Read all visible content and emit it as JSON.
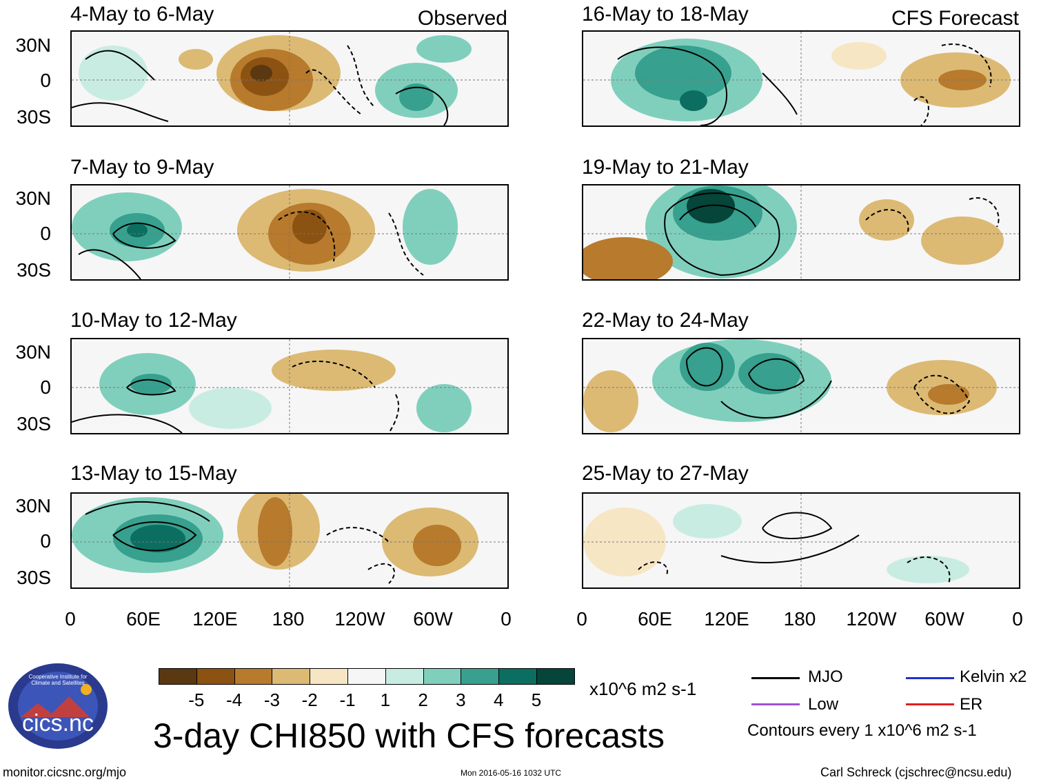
{
  "panels_left": [
    {
      "title": "4-May to 6-May",
      "tag": "Observed"
    },
    {
      "title": "7-May to 9-May",
      "tag": ""
    },
    {
      "title": "10-May to 12-May",
      "tag": ""
    },
    {
      "title": "13-May to 15-May",
      "tag": ""
    }
  ],
  "panels_right": [
    {
      "title": "16-May to 18-May",
      "tag": "CFS Forecast"
    },
    {
      "title": "19-May to 21-May",
      "tag": ""
    },
    {
      "title": "22-May to 24-May",
      "tag": ""
    },
    {
      "title": "25-May to 27-May",
      "tag": ""
    }
  ],
  "lat_labels": [
    "30N",
    "0",
    "30S"
  ],
  "lon_labels": [
    "0",
    "60E",
    "120E",
    "180",
    "120W",
    "60W",
    "0"
  ],
  "colorbar": {
    "colors": [
      "#5a3812",
      "#8c5212",
      "#b87a2c",
      "#dcba74",
      "#f6e6c4",
      "#f6f6f6",
      "#c9ece2",
      "#80cfbd",
      "#37a08e",
      "#0c6e60",
      "#05453a"
    ],
    "labels": [
      "-5",
      "-4",
      "-3",
      "-2",
      "-1",
      "1",
      "2",
      "3",
      "4",
      "5"
    ],
    "units": "x10^6 m2 s-1"
  },
  "legend": {
    "mjo": "MJO",
    "kelvin": "Kelvin x2",
    "low": "Low",
    "er": "ER",
    "contours": "Contours every 1 x10^6 m2 s-1",
    "colors": {
      "mjo": "#000000",
      "kelvin": "#1f2fd0",
      "low": "#a050d8",
      "er": "#e02020"
    }
  },
  "main_title": "3-day CHI850 with CFS forecasts",
  "logo_text": "cics.nc",
  "logo_ring_text": "Cooperative Institute for Climate and Satellites",
  "footer": {
    "url": "monitor.cicsnc.org/mjo",
    "timestamp": "Mon 2016-05-16 1032 UTC",
    "author": "Carl Schreck (cjschrec@ncsu.edu)"
  }
}
